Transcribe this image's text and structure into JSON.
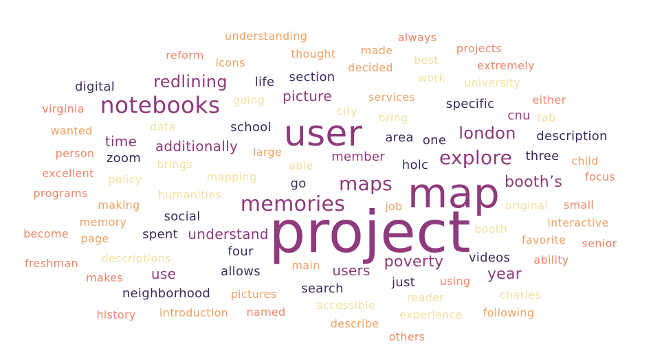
{
  "palette": {
    "c1": "#ef8567",
    "c2": "#f0a060",
    "c3": "#f3e0a0",
    "c4": "#3c2a5c",
    "c5": "#8e3a7c"
  },
  "words": [
    {
      "text": "project",
      "color": "c5"
    },
    {
      "text": "map",
      "color": "c5"
    },
    {
      "text": "user",
      "color": "c5"
    },
    {
      "text": "notebooks",
      "color": "c5"
    },
    {
      "text": "memories",
      "color": "c5"
    },
    {
      "text": "maps",
      "color": "c5"
    },
    {
      "text": "explore",
      "color": "c5"
    },
    {
      "text": "london",
      "color": "c5"
    },
    {
      "text": "booth’s",
      "color": "c5"
    },
    {
      "text": "redlining",
      "color": "c5"
    },
    {
      "text": "poverty",
      "color": "c5"
    },
    {
      "text": "year",
      "color": "c5"
    },
    {
      "text": "additionally",
      "color": "c5"
    },
    {
      "text": "time",
      "color": "c5"
    },
    {
      "text": "understand",
      "color": "c5"
    },
    {
      "text": "users",
      "color": "c5"
    },
    {
      "text": "picture",
      "color": "c5"
    },
    {
      "text": "member",
      "color": "c5"
    },
    {
      "text": "use",
      "color": "c5"
    },
    {
      "text": "cnu",
      "color": "c5"
    },
    {
      "text": "description",
      "color": "c4"
    },
    {
      "text": "neighborhood",
      "color": "c4"
    },
    {
      "text": "search",
      "color": "c4"
    },
    {
      "text": "videos",
      "color": "c4"
    },
    {
      "text": "specific",
      "color": "c4"
    },
    {
      "text": "allows",
      "color": "c4"
    },
    {
      "text": "three",
      "color": "c4"
    },
    {
      "text": "spent",
      "color": "c4"
    },
    {
      "text": "social",
      "color": "c4"
    },
    {
      "text": "school",
      "color": "c4"
    },
    {
      "text": "digital",
      "color": "c4"
    },
    {
      "text": "section",
      "color": "c4"
    },
    {
      "text": "just",
      "color": "c4"
    },
    {
      "text": "four",
      "color": "c4"
    },
    {
      "text": "holc",
      "color": "c4"
    },
    {
      "text": "zoom",
      "color": "c4"
    },
    {
      "text": "area",
      "color": "c4"
    },
    {
      "text": "one",
      "color": "c4"
    },
    {
      "text": "life",
      "color": "c4"
    },
    {
      "text": "go",
      "color": "c4"
    },
    {
      "text": "understanding",
      "color": "c2"
    },
    {
      "text": "always",
      "color": "c1"
    },
    {
      "text": "reform",
      "color": "c1"
    },
    {
      "text": "thought",
      "color": "c2"
    },
    {
      "text": "made",
      "color": "c2"
    },
    {
      "text": "projects",
      "color": "c1"
    },
    {
      "text": "icons",
      "color": "c2"
    },
    {
      "text": "best",
      "color": "c3"
    },
    {
      "text": "decided",
      "color": "c2"
    },
    {
      "text": "extremely",
      "color": "c1"
    },
    {
      "text": "work",
      "color": "c3"
    },
    {
      "text": "university",
      "color": "c3"
    },
    {
      "text": "either",
      "color": "c1"
    },
    {
      "text": "services",
      "color": "c2"
    },
    {
      "text": "going",
      "color": "c3"
    },
    {
      "text": "virginia",
      "color": "c1"
    },
    {
      "text": "city",
      "color": "c3"
    },
    {
      "text": "bring",
      "color": "c3"
    },
    {
      "text": "tab",
      "color": "c3"
    },
    {
      "text": "wanted",
      "color": "c2"
    },
    {
      "text": "data",
      "color": "c3"
    },
    {
      "text": "person",
      "color": "c1"
    },
    {
      "text": "large",
      "color": "c2"
    },
    {
      "text": "child",
      "color": "c2"
    },
    {
      "text": "brings",
      "color": "c3"
    },
    {
      "text": "able",
      "color": "c3"
    },
    {
      "text": "excellent",
      "color": "c1"
    },
    {
      "text": "policy",
      "color": "c3"
    },
    {
      "text": "mapping",
      "color": "c3"
    },
    {
      "text": "focus",
      "color": "c1"
    },
    {
      "text": "programs",
      "color": "c1"
    },
    {
      "text": "humanities",
      "color": "c3"
    },
    {
      "text": "making",
      "color": "c2"
    },
    {
      "text": "job",
      "color": "c2"
    },
    {
      "text": "original",
      "color": "c3"
    },
    {
      "text": "small",
      "color": "c1"
    },
    {
      "text": "memory",
      "color": "c2"
    },
    {
      "text": "interactive",
      "color": "c2"
    },
    {
      "text": "become",
      "color": "c1"
    },
    {
      "text": "page",
      "color": "c2"
    },
    {
      "text": "booth",
      "color": "c3"
    },
    {
      "text": "favorite",
      "color": "c2"
    },
    {
      "text": "senior",
      "color": "c1"
    },
    {
      "text": "freshman",
      "color": "c1"
    },
    {
      "text": "descriptions",
      "color": "c3"
    },
    {
      "text": "main",
      "color": "c2"
    },
    {
      "text": "ability",
      "color": "c1"
    },
    {
      "text": "makes",
      "color": "c1"
    },
    {
      "text": "using",
      "color": "c1"
    },
    {
      "text": "reader",
      "color": "c3"
    },
    {
      "text": "charles",
      "color": "c3"
    },
    {
      "text": "pictures",
      "color": "c2"
    },
    {
      "text": "accessible",
      "color": "c3"
    },
    {
      "text": "history",
      "color": "c1"
    },
    {
      "text": "introduction",
      "color": "c2"
    },
    {
      "text": "named",
      "color": "c1"
    },
    {
      "text": "experience",
      "color": "c3"
    },
    {
      "text": "following",
      "color": "c2"
    },
    {
      "text": "describe",
      "color": "c2"
    },
    {
      "text": "others",
      "color": "c1"
    }
  ]
}
